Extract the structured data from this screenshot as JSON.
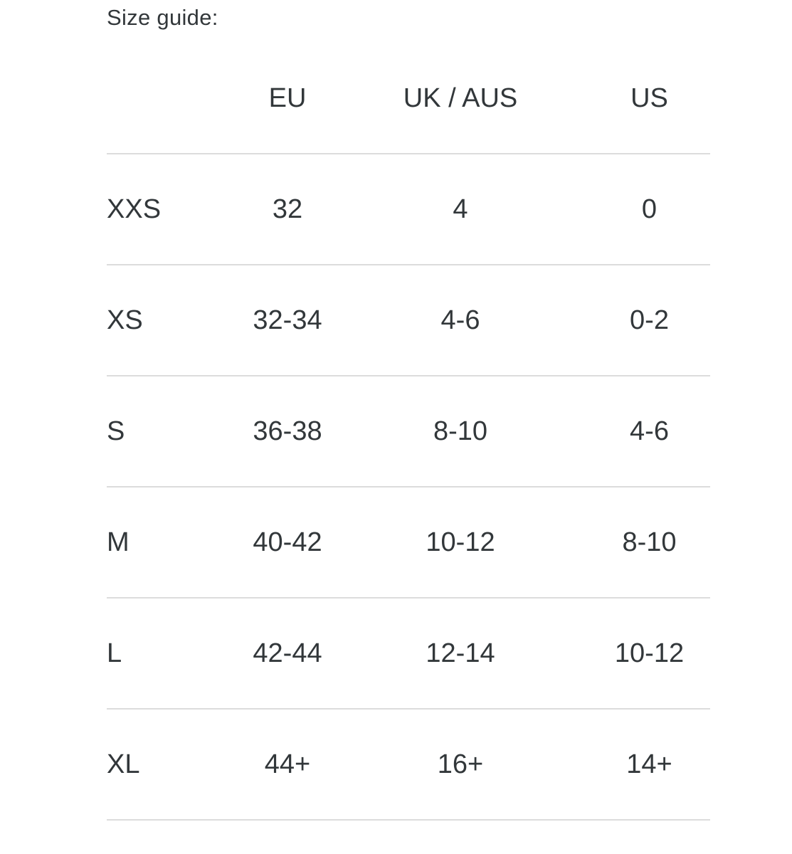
{
  "title": "Size guide:",
  "size_guide": {
    "columns": {
      "size": "",
      "eu": "EU",
      "uk_aus": "UK / AUS",
      "us": "US"
    },
    "rows": [
      {
        "size": "XXS",
        "eu": "32",
        "uk_aus": "4",
        "us": "0"
      },
      {
        "size": "XS",
        "eu": "32-34",
        "uk_aus": "4-6",
        "us": "0-2"
      },
      {
        "size": "S",
        "eu": "36-38",
        "uk_aus": "8-10",
        "us": "4-6"
      },
      {
        "size": "M",
        "eu": "40-42",
        "uk_aus": "10-12",
        "us": "8-10"
      },
      {
        "size": "L",
        "eu": "42-44",
        "uk_aus": "12-14",
        "us": "10-12"
      },
      {
        "size": "XL",
        "eu": "44+",
        "uk_aus": "16+",
        "us": "14+"
      }
    ]
  },
  "colors": {
    "text": "#32373a",
    "divider": "#dcdcdc",
    "background": "#ffffff"
  }
}
